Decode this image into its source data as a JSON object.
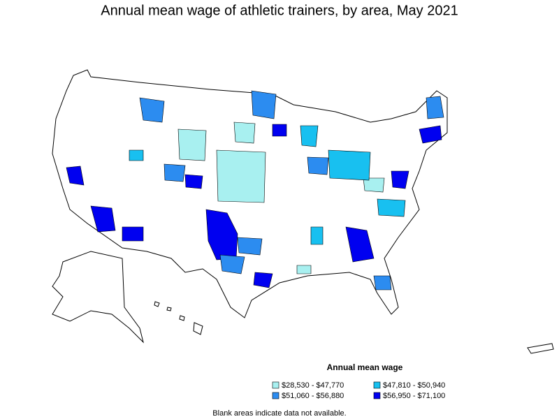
{
  "title": "Annual mean wage of athletic trainers, by area, May 2021",
  "legend": {
    "title": "Annual mean wage",
    "items": [
      {
        "label": "$28,530 - $47,770",
        "color": "#a8f0f0"
      },
      {
        "label": "$47,810 - $50,940",
        "color": "#18c0f0"
      },
      {
        "label": "$51,060 - $56,880",
        "color": "#2c8cf0"
      },
      {
        "label": "$56,950 - $71,100",
        "color": "#0000f0"
      }
    ]
  },
  "note": "Blank areas indicate data not available."
}
